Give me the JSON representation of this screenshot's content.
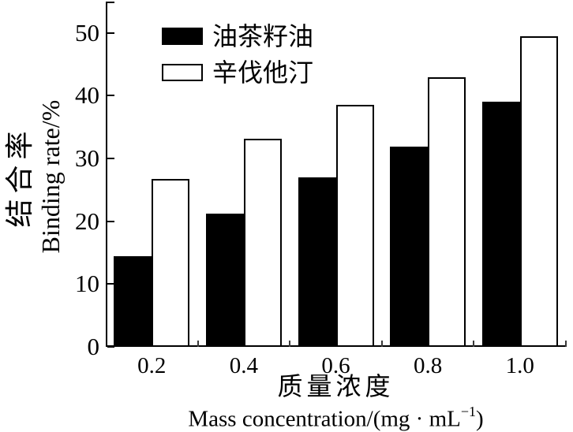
{
  "chart_data": {
    "type": "bar",
    "title": "",
    "categories": [
      "0.2",
      "0.4",
      "0.6",
      "0.8",
      "1.0"
    ],
    "series": [
      {
        "name": "油茶籽油",
        "fill": "#000000",
        "values": [
          14.4,
          21.2,
          27.0,
          31.9,
          39.0
        ]
      },
      {
        "name": "辛伐他汀",
        "fill": "#ffffff",
        "values": [
          26.7,
          33.2,
          38.5,
          42.9,
          49.5
        ]
      }
    ],
    "yticks": [
      0,
      10,
      20,
      30,
      40,
      50
    ],
    "ylim": [
      0,
      55
    ],
    "ylabel_zh": "结合率",
    "ylabel_en": "Binding rate/%",
    "xlabel_zh": "质量浓度",
    "xlabel_en": {
      "prefix": "Mass concentration/(mg · mL",
      "sup": "−1",
      "suffix": ")"
    },
    "legend_position": "top-left-inside",
    "grid": false,
    "colors": {
      "foreground": "#000000",
      "background": "#ffffff",
      "bar_border": "#000000"
    }
  }
}
